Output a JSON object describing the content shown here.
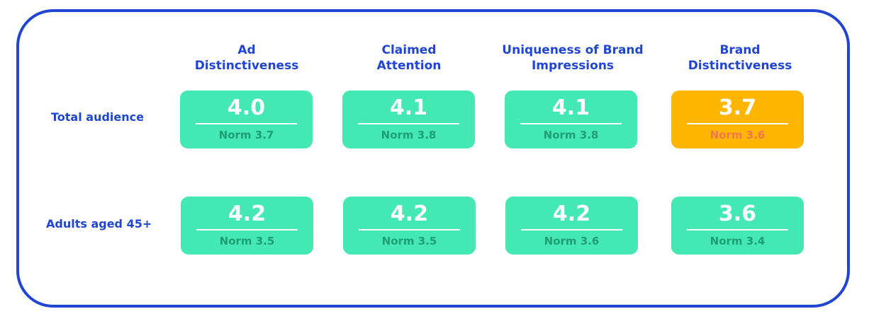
{
  "colors": {
    "border": "#1f45d2",
    "text_blue": "#1f45d2",
    "tile_green": "#43e8b3",
    "tile_orange": "#ffb600",
    "norm_green": "#1f9e73",
    "norm_orange": "#f0774a"
  },
  "chart_data": {
    "type": "table",
    "columns": [
      "Ad\nDistinctiveness",
      "Claimed\nAttention",
      "Uniqueness of Brand\nImpressions",
      "Brand\nDistinctiveness"
    ],
    "rows": [
      {
        "label": "Total audience",
        "cells": [
          {
            "score": "4.0",
            "norm": "Norm 3.7",
            "status": "above"
          },
          {
            "score": "4.1",
            "norm": "Norm 3.8",
            "status": "above"
          },
          {
            "score": "4.1",
            "norm": "Norm 3.8",
            "status": "above"
          },
          {
            "score": "3.7",
            "norm": "Norm 3.6",
            "status": "flagged"
          }
        ]
      },
      {
        "label": "Adults aged 45+",
        "cells": [
          {
            "score": "4.2",
            "norm": "Norm 3.5",
            "status": "above"
          },
          {
            "score": "4.2",
            "norm": "Norm 3.5",
            "status": "above"
          },
          {
            "score": "4.2",
            "norm": "Norm 3.6",
            "status": "above"
          },
          {
            "score": "3.6",
            "norm": "Norm 3.4",
            "status": "above"
          }
        ]
      }
    ]
  }
}
